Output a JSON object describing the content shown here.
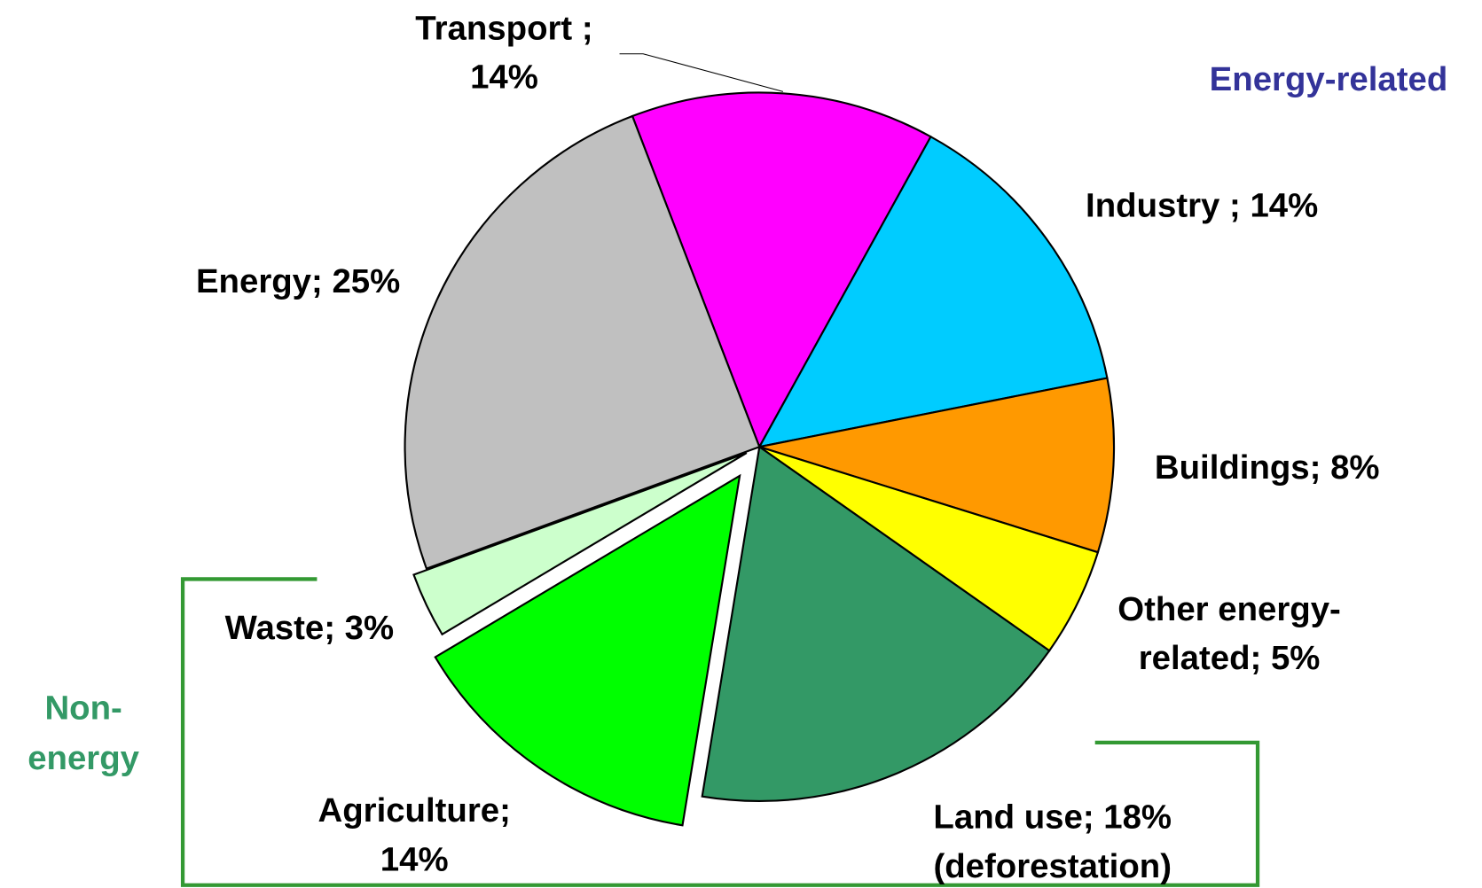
{
  "chart_data": {
    "type": "pie",
    "values": [
      14,
      14,
      8,
      5,
      18,
      14,
      3,
      25
    ],
    "value_labels": [
      [
        "Transport ;",
        "14%"
      ],
      [
        "Industry ; 14%"
      ],
      [
        "Buildings; 8%"
      ],
      [
        "Other energy-",
        "related; 5%"
      ],
      [
        "Land use; 18%",
        "(deforestation)"
      ],
      [
        "Agriculture;",
        "14%"
      ],
      [
        "Waste; 3%"
      ],
      [
        "Energy; 25%"
      ]
    ],
    "colors": [
      "#ff00ff",
      "#00ccff",
      "#ff9900",
      "#ffff00",
      "#339966",
      "#00ff00",
      "#ccffcc",
      "#c0c0c0"
    ],
    "annotations": [
      {
        "text": [
          "Energy-related"
        ],
        "color": "#333399"
      },
      {
        "text": [
          "Non-",
          "energy"
        ],
        "color": "#339966"
      }
    ]
  }
}
